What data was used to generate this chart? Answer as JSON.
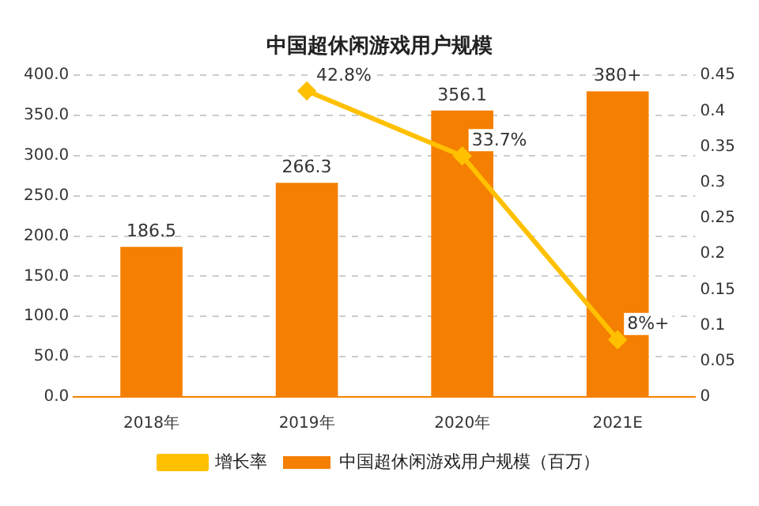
{
  "chart_data": {
    "type": "bar",
    "title": "中国超休闲游戏用户规模",
    "categories": [
      "2018年",
      "2019年",
      "2020年",
      "2021E"
    ],
    "series": [
      {
        "name": "中国超休闲游戏用户规模（百万）",
        "color": "#f57f00",
        "values": [
          186.5,
          266.3,
          356.1,
          380
        ],
        "value_labels": [
          "186.5",
          "266.3",
          "356.1",
          "380+"
        ]
      },
      {
        "name": "增长率",
        "type": "line",
        "axis": "y2",
        "color": "#ffc000",
        "marker": "diamond",
        "values": [
          null,
          0.428,
          0.337,
          0.08
        ],
        "value_labels": [
          null,
          "42.8%",
          "33.7%",
          "8%+"
        ]
      }
    ],
    "ylim": [
      0,
      400
    ],
    "yticks": [
      {
        "value": 0,
        "label": "0.0"
      },
      {
        "value": 50,
        "label": "50.0"
      },
      {
        "value": 100,
        "label": "100.0"
      },
      {
        "value": 150,
        "label": "150.0"
      },
      {
        "value": 200,
        "label": "200.0"
      },
      {
        "value": 250,
        "label": "250.0"
      },
      {
        "value": 300,
        "label": "300.0"
      },
      {
        "value": 350,
        "label": "350.0"
      },
      {
        "value": 400,
        "label": "400.0"
      }
    ],
    "y2lim": [
      0,
      0.45
    ],
    "y2ticks": [
      0,
      0.05,
      0.1,
      0.15,
      0.2,
      0.25,
      0.3,
      0.35,
      0.4,
      0.45
    ],
    "grid": "y",
    "legend": "bottom"
  }
}
